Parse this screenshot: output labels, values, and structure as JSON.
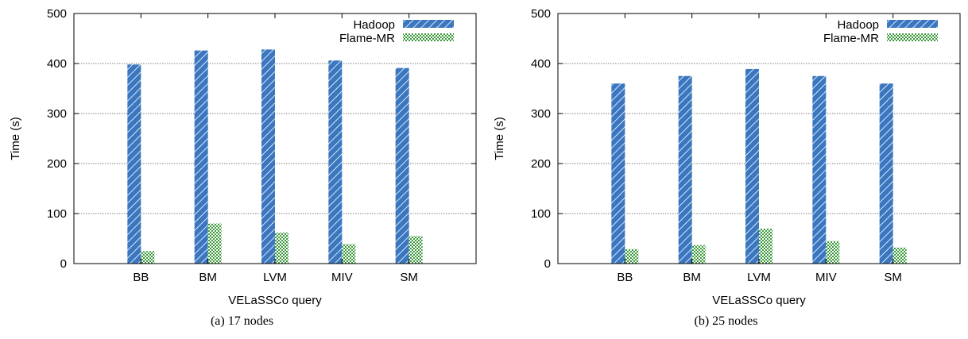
{
  "chart_data": [
    {
      "type": "bar",
      "caption": "(a)  17  nodes",
      "xlabel": "VELaSSCo query",
      "ylabel": "Time (s)",
      "ylim": [
        0,
        500
      ],
      "yticks": [
        0,
        100,
        200,
        300,
        400,
        500
      ],
      "categories": [
        "BB",
        "BM",
        "LVM",
        "MIV",
        "SM"
      ],
      "series": [
        {
          "name": "Hadoop",
          "values": [
            398,
            426,
            428,
            406,
            391
          ]
        },
        {
          "name": "Flame-MR",
          "values": [
            25,
            80,
            62,
            39,
            55
          ]
        }
      ],
      "grid": "horizontal dotted",
      "legend_position": "top-right"
    },
    {
      "type": "bar",
      "caption": "(b)  25  nodes",
      "xlabel": "VELaSSCo query",
      "ylabel": "Time (s)",
      "ylim": [
        0,
        500
      ],
      "yticks": [
        0,
        100,
        200,
        300,
        400,
        500
      ],
      "categories": [
        "BB",
        "BM",
        "LVM",
        "MIV",
        "SM"
      ],
      "series": [
        {
          "name": "Hadoop",
          "values": [
            360,
            375,
            389,
            375,
            360
          ]
        },
        {
          "name": "Flame-MR",
          "values": [
            29,
            37,
            70,
            45,
            32
          ]
        }
      ],
      "grid": "horizontal dotted",
      "legend_position": "top-right"
    }
  ],
  "colors": {
    "hadoop_fill": "#3a77c0",
    "hadoop_stripe": "#ffffff",
    "flame_fill": "#ffffff",
    "flame_check": "#3a9a3a"
  }
}
